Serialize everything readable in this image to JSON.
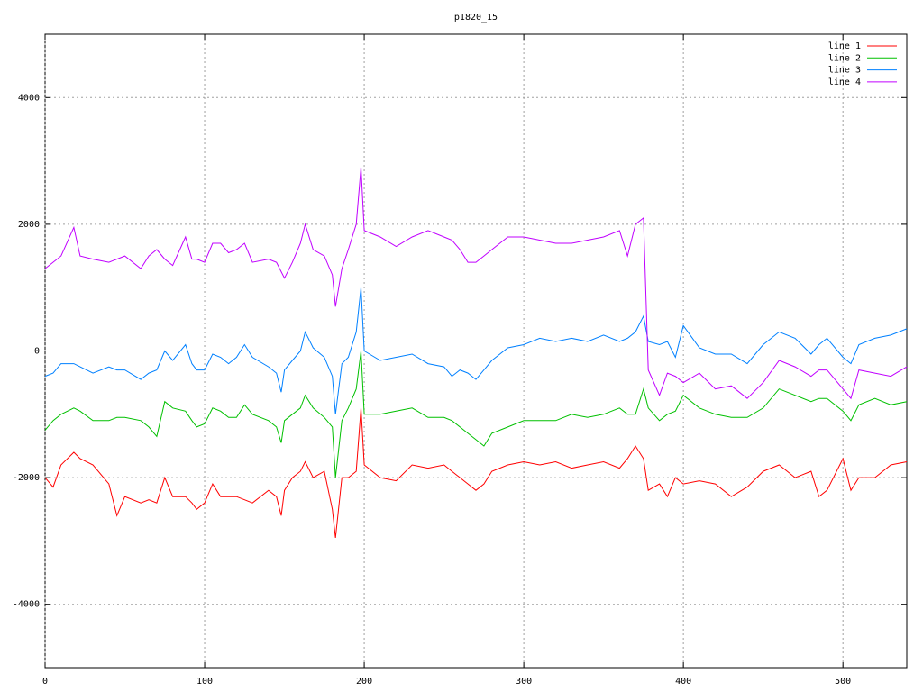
{
  "chart_data": {
    "type": "line",
    "title": "p1820_15",
    "x": [
      0,
      5,
      10,
      18,
      22,
      30,
      40,
      45,
      50,
      60,
      65,
      70,
      75,
      80,
      88,
      92,
      95,
      100,
      105,
      110,
      115,
      120,
      125,
      130,
      140,
      145,
      148,
      150,
      155,
      160,
      163,
      168,
      175,
      180,
      182,
      186,
      190,
      195,
      198,
      200,
      210,
      220,
      230,
      240,
      250,
      255,
      260,
      265,
      270,
      275,
      280,
      290,
      300,
      310,
      320,
      330,
      340,
      350,
      360,
      365,
      370,
      375,
      378,
      385,
      390,
      395,
      400,
      410,
      420,
      430,
      440,
      450,
      460,
      470,
      480,
      485,
      490,
      500,
      505,
      510,
      520,
      530,
      540
    ],
    "series": [
      {
        "name": "line 1",
        "color": "#ff0000",
        "values": [
          -2000,
          -2150,
          -1800,
          -1600,
          -1700,
          -1800,
          -2100,
          -2600,
          -2300,
          -2400,
          -2350,
          -2400,
          -2000,
          -2300,
          -2300,
          -2400,
          -2500,
          -2400,
          -2100,
          -2300,
          -2300,
          -2300,
          -2350,
          -2400,
          -2200,
          -2300,
          -2600,
          -2200,
          -2000,
          -1900,
          -1750,
          -2000,
          -1900,
          -2500,
          -2950,
          -2000,
          -2000,
          -1900,
          -900,
          -1800,
          -2000,
          -2050,
          -1800,
          -1850,
          -1800,
          -1900,
          -2000,
          -2100,
          -2200,
          -2100,
          -1900,
          -1800,
          -1750,
          -1800,
          -1750,
          -1850,
          -1800,
          -1750,
          -1850,
          -1700,
          -1500,
          -1700,
          -2200,
          -2100,
          -2300,
          -2000,
          -2100,
          -2050,
          -2100,
          -2300,
          -2150,
          -1900,
          -1800,
          -2000,
          -1900,
          -2300,
          -2200,
          -1700,
          -2200,
          -2000,
          -2000,
          -1800,
          -1750
        ]
      },
      {
        "name": "line 2",
        "color": "#00c000",
        "values": [
          -1250,
          -1100,
          -1000,
          -900,
          -950,
          -1100,
          -1100,
          -1050,
          -1050,
          -1100,
          -1200,
          -1350,
          -800,
          -900,
          -950,
          -1100,
          -1200,
          -1150,
          -900,
          -950,
          -1050,
          -1050,
          -850,
          -1000,
          -1100,
          -1200,
          -1450,
          -1100,
          -1000,
          -900,
          -700,
          -900,
          -1050,
          -1200,
          -2000,
          -1100,
          -900,
          -600,
          0,
          -1000,
          -1000,
          -950,
          -900,
          -1050,
          -1050,
          -1100,
          -1200,
          -1300,
          -1400,
          -1500,
          -1300,
          -1200,
          -1100,
          -1100,
          -1100,
          -1000,
          -1050,
          -1000,
          -900,
          -1000,
          -1000,
          -600,
          -900,
          -1100,
          -1000,
          -950,
          -700,
          -900,
          -1000,
          -1050,
          -1050,
          -900,
          -600,
          -700,
          -800,
          -750,
          -750,
          -950,
          -1100,
          -850,
          -750,
          -850,
          -800
        ]
      },
      {
        "name": "line 3",
        "color": "#0080ff",
        "values": [
          -400,
          -350,
          -200,
          -200,
          -250,
          -350,
          -250,
          -300,
          -300,
          -450,
          -350,
          -300,
          0,
          -150,
          100,
          -200,
          -300,
          -300,
          -50,
          -100,
          -200,
          -100,
          100,
          -100,
          -250,
          -350,
          -650,
          -300,
          -150,
          0,
          300,
          50,
          -100,
          -400,
          -1000,
          -200,
          -100,
          300,
          1000,
          0,
          -150,
          -100,
          -50,
          -200,
          -250,
          -400,
          -300,
          -350,
          -450,
          -300,
          -150,
          50,
          100,
          200,
          150,
          200,
          150,
          250,
          150,
          200,
          300,
          550,
          150,
          100,
          150,
          -100,
          400,
          50,
          -50,
          -50,
          -200,
          100,
          300,
          200,
          -50,
          100,
          200,
          -100,
          -200,
          100,
          200,
          250,
          350
        ]
      },
      {
        "name": "line 4",
        "color": "#c000ff",
        "values": [
          1300,
          1400,
          1500,
          1950,
          1500,
          1450,
          1400,
          1450,
          1500,
          1300,
          1500,
          1600,
          1450,
          1350,
          1800,
          1450,
          1450,
          1400,
          1700,
          1700,
          1550,
          1600,
          1700,
          1400,
          1450,
          1400,
          1250,
          1150,
          1400,
          1700,
          2000,
          1600,
          1500,
          1200,
          700,
          1300,
          1600,
          2000,
          2900,
          1900,
          1800,
          1650,
          1800,
          1900,
          1800,
          1750,
          1600,
          1400,
          1400,
          1500,
          1600,
          1800,
          1800,
          1750,
          1700,
          1700,
          1750,
          1800,
          1900,
          1500,
          2000,
          2100,
          -300,
          -700,
          -350,
          -400,
          -500,
          -350,
          -600,
          -550,
          -750,
          -500,
          -150,
          -250,
          -400,
          -300,
          -300,
          -600,
          -750,
          -300,
          -350,
          -400,
          -250
        ]
      }
    ],
    "xlim": [
      0,
      540
    ],
    "xticks": [
      0,
      100,
      200,
      300,
      400,
      500
    ],
    "ylim": [
      -5000,
      5000
    ],
    "yticks": [
      -4000,
      -2000,
      0,
      2000,
      4000
    ],
    "grid": true,
    "legend": "upper right"
  }
}
